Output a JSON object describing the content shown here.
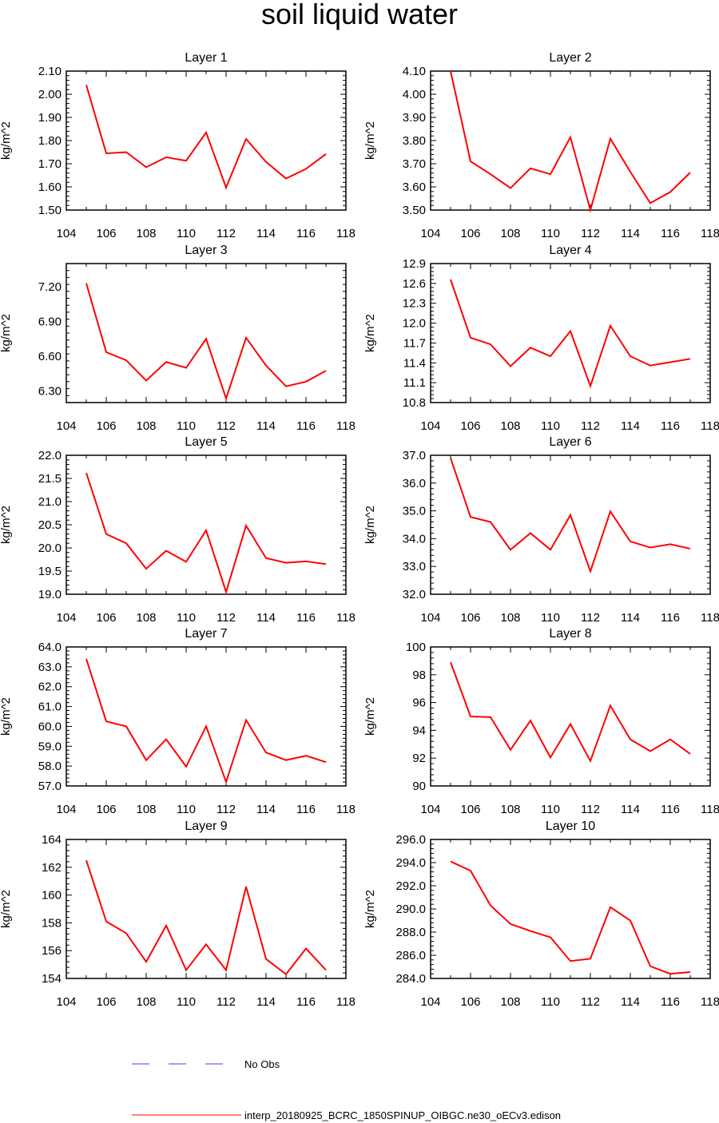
{
  "title": "soil liquid water",
  "legend": {
    "items": [
      {
        "label": "No Obs",
        "color": "#3b3bff",
        "dash": true
      },
      {
        "label": "interp_20180925_BCRC_1850SPINUP_OIBGC.ne30_oECv3.edison",
        "color": "#ff0000",
        "dash": false
      }
    ]
  },
  "chart_data": [
    {
      "type": "line",
      "title": "Layer 1",
      "ylabel": "kg/m^2",
      "xlim": [
        104,
        118
      ],
      "ylim": [
        1.5,
        2.1
      ],
      "xticks": [
        "104",
        "106",
        "108",
        "110",
        "112",
        "114",
        "116",
        "118"
      ],
      "yticks": [
        "1.50",
        "1.60",
        "1.70",
        "1.80",
        "1.90",
        "2.00",
        "2.10"
      ],
      "x": [
        105,
        106,
        107,
        108,
        109,
        110,
        111,
        112,
        113,
        114,
        115,
        116,
        117
      ],
      "series": [
        {
          "color": "#ff0000",
          "values": [
            2.04,
            1.745,
            1.75,
            1.685,
            1.728,
            1.713,
            1.835,
            1.597,
            1.807,
            1.708,
            1.636,
            1.678,
            1.742
          ]
        }
      ]
    },
    {
      "type": "line",
      "title": "Layer 2",
      "ylabel": "kg/m^2",
      "xlim": [
        104,
        118
      ],
      "ylim": [
        3.5,
        4.1
      ],
      "xticks": [
        "104",
        "106",
        "108",
        "110",
        "112",
        "114",
        "116",
        "118"
      ],
      "yticks": [
        "3.50",
        "3.60",
        "3.70",
        "3.80",
        "3.90",
        "4.00",
        "4.10"
      ],
      "x": [
        105,
        106,
        107,
        108,
        109,
        110,
        111,
        112,
        113,
        114,
        115,
        116,
        117
      ],
      "series": [
        {
          "color": "#ff0000",
          "values": [
            4.1,
            3.71,
            3.655,
            3.595,
            3.68,
            3.655,
            3.815,
            3.5,
            3.808,
            3.665,
            3.53,
            3.578,
            3.662
          ]
        }
      ]
    },
    {
      "type": "line",
      "title": "Layer 3",
      "ylabel": "kg/m^2",
      "xlim": [
        104,
        118
      ],
      "ylim": [
        6.2,
        7.4
      ],
      "xticks": [
        "104",
        "106",
        "108",
        "110",
        "112",
        "114",
        "116",
        "118"
      ],
      "yticks": [
        "6.30",
        "6.60",
        "6.90",
        "7.20"
      ],
      "x": [
        105,
        106,
        107,
        108,
        109,
        110,
        111,
        112,
        113,
        114,
        115,
        116,
        117
      ],
      "series": [
        {
          "color": "#ff0000",
          "values": [
            7.23,
            6.635,
            6.565,
            6.39,
            6.55,
            6.5,
            6.75,
            6.235,
            6.76,
            6.52,
            6.34,
            6.38,
            6.475
          ]
        }
      ]
    },
    {
      "type": "line",
      "title": "Layer 4",
      "ylabel": "kg/m^2",
      "xlim": [
        104,
        118
      ],
      "ylim": [
        10.8,
        12.9
      ],
      "xticks": [
        "104",
        "106",
        "108",
        "110",
        "112",
        "114",
        "116",
        "118"
      ],
      "yticks": [
        "10.8",
        "11.1",
        "11.4",
        "11.7",
        "12.0",
        "12.3",
        "12.6",
        "12.9"
      ],
      "x": [
        105,
        106,
        107,
        108,
        109,
        110,
        111,
        112,
        113,
        114,
        115,
        116,
        117
      ],
      "series": [
        {
          "color": "#ff0000",
          "values": [
            12.66,
            11.78,
            11.68,
            11.35,
            11.63,
            11.5,
            11.88,
            11.05,
            11.96,
            11.5,
            11.36,
            11.41,
            11.46
          ]
        }
      ]
    },
    {
      "type": "line",
      "title": "Layer 5",
      "ylabel": "kg/m^2",
      "xlim": [
        104,
        118
      ],
      "ylim": [
        19.0,
        22.0
      ],
      "xticks": [
        "104",
        "106",
        "108",
        "110",
        "112",
        "114",
        "116",
        "118"
      ],
      "yticks": [
        "19.0",
        "19.5",
        "20.0",
        "20.5",
        "21.0",
        "21.5",
        "22.0"
      ],
      "x": [
        105,
        106,
        107,
        108,
        109,
        110,
        111,
        112,
        113,
        114,
        115,
        116,
        117
      ],
      "series": [
        {
          "color": "#ff0000",
          "values": [
            21.62,
            20.3,
            20.1,
            19.55,
            19.94,
            19.7,
            20.38,
            19.05,
            20.48,
            19.78,
            19.68,
            19.71,
            19.65
          ]
        }
      ]
    },
    {
      "type": "line",
      "title": "Layer 6",
      "ylabel": "kg/m^2",
      "xlim": [
        104,
        118
      ],
      "ylim": [
        32.0,
        37.0
      ],
      "xticks": [
        "104",
        "106",
        "108",
        "110",
        "112",
        "114",
        "116",
        "118"
      ],
      "yticks": [
        "32.0",
        "33.0",
        "34.0",
        "35.0",
        "36.0",
        "37.0"
      ],
      "x": [
        105,
        106,
        107,
        108,
        109,
        110,
        111,
        112,
        113,
        114,
        115,
        116,
        117
      ],
      "series": [
        {
          "color": "#ff0000",
          "values": [
            36.9,
            34.78,
            34.6,
            33.6,
            34.2,
            33.6,
            34.85,
            32.82,
            34.98,
            33.9,
            33.68,
            33.8,
            33.64
          ]
        }
      ]
    },
    {
      "type": "line",
      "title": "Layer 7",
      "ylabel": "kg/m^2",
      "xlim": [
        104,
        118
      ],
      "ylim": [
        57.0,
        64.0
      ],
      "xticks": [
        "104",
        "106",
        "108",
        "110",
        "112",
        "114",
        "116",
        "118"
      ],
      "yticks": [
        "57.0",
        "58.0",
        "59.0",
        "60.0",
        "61.0",
        "62.0",
        "63.0",
        "64.0"
      ],
      "x": [
        105,
        106,
        107,
        108,
        109,
        110,
        111,
        112,
        113,
        114,
        115,
        116,
        117
      ],
      "series": [
        {
          "color": "#ff0000",
          "values": [
            63.4,
            60.25,
            60.0,
            58.3,
            59.35,
            57.97,
            60.0,
            57.2,
            60.32,
            58.68,
            58.3,
            58.52,
            58.2
          ]
        }
      ]
    },
    {
      "type": "line",
      "title": "Layer 8",
      "ylabel": "kg/m^2",
      "xlim": [
        104,
        118
      ],
      "ylim": [
        90,
        100
      ],
      "xticks": [
        "104",
        "106",
        "108",
        "110",
        "112",
        "114",
        "116",
        "118"
      ],
      "yticks": [
        "90",
        "92",
        "94",
        "96",
        "98",
        "100"
      ],
      "x": [
        105,
        106,
        107,
        108,
        109,
        110,
        111,
        112,
        113,
        114,
        115,
        116,
        117
      ],
      "series": [
        {
          "color": "#ff0000",
          "values": [
            98.9,
            95.0,
            94.95,
            92.6,
            94.7,
            92.05,
            94.45,
            91.8,
            95.78,
            93.35,
            92.5,
            93.35,
            92.3
          ]
        }
      ]
    },
    {
      "type": "line",
      "title": "Layer 9",
      "ylabel": "kg/m^2",
      "xlim": [
        104,
        118
      ],
      "ylim": [
        154,
        164
      ],
      "xticks": [
        "104",
        "106",
        "108",
        "110",
        "112",
        "114",
        "116",
        "118"
      ],
      "yticks": [
        "154",
        "156",
        "158",
        "160",
        "162",
        "164"
      ],
      "x": [
        105,
        106,
        107,
        108,
        109,
        110,
        111,
        112,
        113,
        114,
        115,
        116,
        117
      ],
      "series": [
        {
          "color": "#ff0000",
          "values": [
            162.5,
            158.1,
            157.25,
            155.2,
            157.8,
            154.6,
            156.45,
            154.6,
            160.6,
            155.4,
            154.3,
            156.15,
            154.6
          ]
        }
      ]
    },
    {
      "type": "line",
      "title": "Layer 10",
      "ylabel": "kg/m^2",
      "xlim": [
        104,
        118
      ],
      "ylim": [
        284.0,
        296.0
      ],
      "xticks": [
        "104",
        "106",
        "108",
        "110",
        "112",
        "114",
        "116",
        "118"
      ],
      "yticks": [
        "284.0",
        "286.0",
        "288.0",
        "290.0",
        "292.0",
        "294.0",
        "296.0"
      ],
      "x": [
        105,
        106,
        107,
        108,
        109,
        110,
        111,
        112,
        113,
        114,
        115,
        116,
        117
      ],
      "series": [
        {
          "color": "#ff0000",
          "values": [
            294.1,
            293.3,
            290.3,
            288.7,
            288.1,
            287.55,
            285.5,
            285.7,
            290.15,
            289.0,
            285.05,
            284.4,
            284.55
          ]
        }
      ]
    }
  ]
}
